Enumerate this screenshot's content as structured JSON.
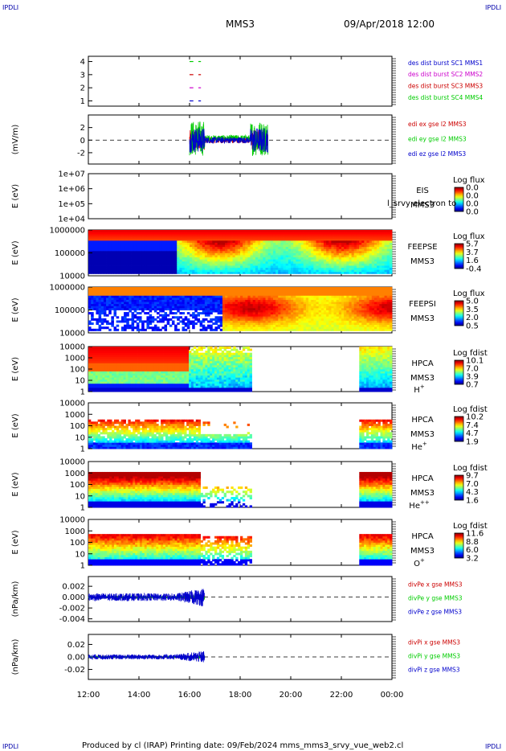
{
  "header": {
    "corner_left_top": "IPDLI",
    "corner_right_top": "IPDLI",
    "corner_left_bottom": "IPDLI",
    "corner_right_bottom": "IPDLI",
    "spacecraft": "MMS3",
    "datetime": "09/Apr/2018 12:00"
  },
  "footer": "Produced by cl (IRAP)   Printing date: 09/Feb/2024   mms_mms3_srvy_vue_web2.cl",
  "colors": {
    "red": "#cc0000",
    "green": "#00cc00",
    "magenta": "#cc00cc",
    "blue": "#0000cc"
  },
  "chart_data": [
    {
      "type": "line",
      "id": "burst",
      "ylim": [
        0.6,
        4.4
      ],
      "ticks": [
        "1",
        "2",
        "3",
        "4"
      ],
      "tick_values": [
        1,
        2,
        3,
        4
      ],
      "legend": [
        {
          "text": "des dist burst SC1 MMS1",
          "color": "#0000cc"
        },
        {
          "text": "des dist burst SC2 MMS2",
          "color": "#cc00cc"
        },
        {
          "text": "des dist burst SC3 MMS3",
          "color": "#cc0000"
        },
        {
          "text": "des dist burst SC4 MMS4",
          "color": "#00cc00"
        }
      ],
      "series": [
        {
          "y": 4,
          "color": "#00cc00",
          "segments": [
            [
              16.0,
              16.15
            ],
            [
              16.35,
              16.45
            ]
          ]
        },
        {
          "y": 3,
          "color": "#cc0000",
          "segments": [
            [
              16.0,
              16.15
            ],
            [
              16.35,
              16.45
            ]
          ]
        },
        {
          "y": 2,
          "color": "#cc00cc",
          "segments": [
            [
              16.0,
              16.15
            ],
            [
              16.35,
              16.45
            ]
          ]
        },
        {
          "y": 1,
          "color": "#0000cc",
          "segments": [
            [
              16.0,
              16.15
            ],
            [
              16.35,
              16.45
            ]
          ]
        }
      ]
    },
    {
      "type": "line",
      "id": "edi",
      "ylabel": "(mV/m)",
      "ylim": [
        -3.8,
        4.0
      ],
      "ticks": [
        "2",
        "0",
        "-2"
      ],
      "tick_values": [
        2,
        0,
        -2
      ],
      "legend": [
        {
          "text": "edi ex gse l2 MMS3",
          "color": "#cc0000"
        },
        {
          "text": "edi ey gse l2 MMS3",
          "color": "#00cc00"
        },
        {
          "text": "edi ez gse l2 MMS3",
          "color": "#0000cc"
        }
      ],
      "xrange": [
        16.0,
        19.1
      ]
    },
    {
      "type": "heatmap",
      "id": "eis",
      "ylabel": "E (eV)",
      "ticks": [
        "1e+07",
        "1e+06",
        "1e+05",
        "1e+04"
      ],
      "label_lines": [
        "EIS",
        "MMS3"
      ],
      "overlay_text": "l_srvy electron to",
      "colorbar_title": "Log flux",
      "colorbar_ticks": [
        "0.0",
        "0.0",
        "0.0",
        "0.0"
      ]
    },
    {
      "type": "heatmap",
      "id": "feepse",
      "ylabel": "E (eV)",
      "ticks": [
        "1000000",
        "100000",
        "10000"
      ],
      "label_lines": [
        "FEEPSE",
        "MMS3"
      ],
      "colorbar_title": "Log flux",
      "colorbar_ticks": [
        "5.7",
        "3.7",
        "1.6",
        "-0.4"
      ]
    },
    {
      "type": "heatmap",
      "id": "feepsi",
      "ylabel": "E (eV)",
      "ticks": [
        "1000000",
        "100000",
        "10000"
      ],
      "label_lines": [
        "FEEPSI",
        "MMS3"
      ],
      "colorbar_title": "Log flux",
      "colorbar_ticks": [
        "5.0",
        "3.5",
        "2.0",
        "0.5"
      ]
    },
    {
      "type": "heatmap",
      "id": "hpca_h",
      "ylabel": "E (eV)",
      "ticks": [
        "10000",
        "1000",
        "100",
        "10",
        "1"
      ],
      "label_lines": [
        "HPCA",
        "MMS3"
      ],
      "species": "H",
      "species_sup": "+",
      "colorbar_title": "Log fdist",
      "colorbar_ticks": [
        "10.1",
        "7.0",
        "3.9",
        "0.7"
      ],
      "data_ranges": [
        [
          12.0,
          18.45
        ],
        [
          22.75,
          24.0
        ]
      ]
    },
    {
      "type": "heatmap",
      "id": "hpca_he1",
      "ylabel": "E (eV)",
      "ticks": [
        "10000",
        "1000",
        "100",
        "10",
        "1"
      ],
      "label_lines": [
        "HPCA",
        "MMS3"
      ],
      "species": "He",
      "species_sup": "+",
      "colorbar_title": "Log fdist",
      "colorbar_ticks": [
        "10.2",
        "7.4",
        "4.7",
        "1.9"
      ],
      "data_ranges": [
        [
          12.0,
          18.45
        ],
        [
          22.75,
          24.0
        ]
      ]
    },
    {
      "type": "heatmap",
      "id": "hpca_he2",
      "ylabel": "E (eV)",
      "ticks": [
        "10000",
        "1000",
        "100",
        "10",
        "1"
      ],
      "label_lines": [
        "HPCA",
        "MMS3"
      ],
      "species": "He",
      "species_sup": "++",
      "colorbar_title": "Log fdist",
      "colorbar_ticks": [
        "9.7",
        "7.0",
        "4.3",
        "1.6"
      ],
      "data_ranges": [
        [
          12.0,
          18.45
        ],
        [
          22.75,
          24.0
        ]
      ]
    },
    {
      "type": "heatmap",
      "id": "hpca_o",
      "ylabel": "E (eV)",
      "ticks": [
        "10000",
        "1000",
        "100",
        "10",
        "1"
      ],
      "label_lines": [
        "HPCA",
        "MMS3"
      ],
      "species": "O",
      "species_sup": "+",
      "colorbar_title": "Log fdist",
      "colorbar_ticks": [
        "11.6",
        "8.8",
        "6.0",
        "3.2"
      ],
      "data_ranges": [
        [
          12.0,
          18.45
        ],
        [
          22.75,
          24.0
        ]
      ]
    },
    {
      "type": "line",
      "id": "divpe",
      "ylabel": "(nPa/km)",
      "ylim": [
        -0.0045,
        0.0038
      ],
      "ticks": [
        "0.002",
        "0.000",
        "-0.002",
        "-0.004"
      ],
      "tick_values": [
        0.002,
        0.0,
        -0.002,
        -0.004
      ],
      "legend": [
        {
          "text": "divPe x gse MMS3",
          "color": "#cc0000"
        },
        {
          "text": "divPe y gse MMS3",
          "color": "#00cc00"
        },
        {
          "text": "divPe z gse MMS3",
          "color": "#0000cc"
        }
      ],
      "xrange": [
        12.0,
        16.6
      ]
    },
    {
      "type": "line",
      "id": "divpi",
      "ylabel": "(nPa/km)",
      "ylim": [
        -0.036,
        0.036
      ],
      "ticks": [
        "0.02",
        "0.00",
        "-0.02"
      ],
      "tick_values": [
        0.02,
        0.0,
        -0.02
      ],
      "legend": [
        {
          "text": "divPi x gse MMS3",
          "color": "#cc0000"
        },
        {
          "text": "divPi y gse MMS3",
          "color": "#00cc00"
        },
        {
          "text": "divPi z gse MMS3",
          "color": "#0000cc"
        }
      ],
      "xrange": [
        12.0,
        16.6
      ]
    }
  ],
  "xaxis": {
    "range": [
      12,
      24
    ],
    "tick_values": [
      12,
      14,
      16,
      18,
      20,
      22,
      24
    ],
    "tick_labels": [
      "12:00",
      "14:00",
      "16:00",
      "18:00",
      "20:00",
      "22:00",
      "00:00"
    ]
  }
}
